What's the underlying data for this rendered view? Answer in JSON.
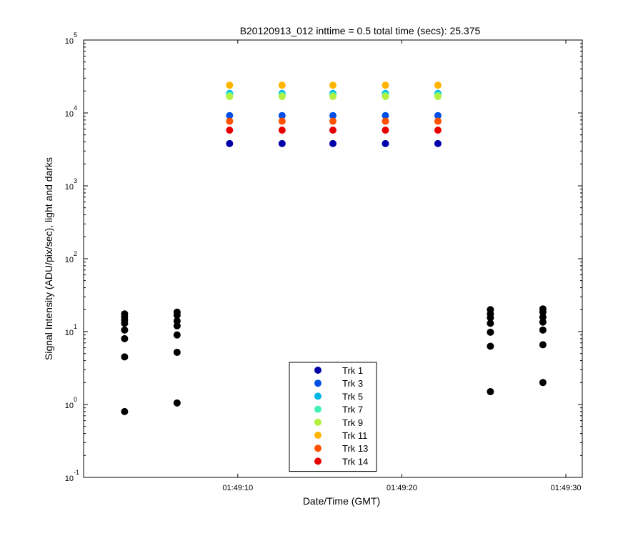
{
  "chart_data": {
    "type": "scatter",
    "title": "B20120913_012 inttime = 0.5 total time (secs): 25.375",
    "xlabel": "Date/Time (GMT)",
    "ylabel": "Signal Intensity (ADU/pix/sec), light and darks",
    "x_range": [
      "01:49:00.6",
      "01:49:31.0"
    ],
    "x_ticks": [
      "01:49:10",
      "01:49:20",
      "01:49:30"
    ],
    "y_scale": "log",
    "ylim": [
      0.1,
      100000
    ],
    "y_ticks": [
      {
        "base": "10",
        "exp": "-1",
        "value": 0.1
      },
      {
        "base": "10",
        "exp": "0",
        "value": 1
      },
      {
        "base": "10",
        "exp": "1",
        "value": 10
      },
      {
        "base": "10",
        "exp": "2",
        "value": 100
      },
      {
        "base": "10",
        "exp": "3",
        "value": 1000
      },
      {
        "base": "10",
        "exp": "4",
        "value": 10000
      },
      {
        "base": "10",
        "exp": "5",
        "value": 100000
      }
    ],
    "grid": false,
    "legend_position": "bottom-center",
    "series": [
      {
        "name": "Trk 1",
        "color": "#0000AA",
        "x": [
          "01:49:09.5",
          "01:49:12.7",
          "01:49:15.8",
          "01:49:19.0",
          "01:49:22.2"
        ],
        "y": [
          3800,
          3800,
          3800,
          3800,
          3800
        ]
      },
      {
        "name": "Trk 3",
        "color": "#0050E6",
        "x": [
          "01:49:09.5",
          "01:49:12.7",
          "01:49:15.8",
          "01:49:19.0",
          "01:49:22.2"
        ],
        "y": [
          9200,
          9200,
          9200,
          9200,
          9200
        ]
      },
      {
        "name": "Trk 5",
        "color": "#00B4E6",
        "x": [
          "01:49:09.5",
          "01:49:12.7",
          "01:49:15.8",
          "01:49:19.0",
          "01:49:22.2"
        ],
        "y": [
          18500,
          18500,
          18500,
          18500,
          18500
        ]
      },
      {
        "name": "Trk 7",
        "color": "#40F0B4",
        "x": [
          "01:49:09.5",
          "01:49:12.7",
          "01:49:15.8",
          "01:49:19.0",
          "01:49:22.2"
        ],
        "y": [
          17500,
          17500,
          17500,
          17500,
          17500
        ]
      },
      {
        "name": "Trk 9",
        "color": "#B4F040",
        "x": [
          "01:49:09.5",
          "01:49:12.7",
          "01:49:15.8",
          "01:49:19.0",
          "01:49:22.2"
        ],
        "y": [
          16800,
          16800,
          16800,
          16800,
          16800
        ]
      },
      {
        "name": "Trk 11",
        "color": "#FFB400",
        "x": [
          "01:49:09.5",
          "01:49:12.7",
          "01:49:15.8",
          "01:49:19.0",
          "01:49:22.2"
        ],
        "y": [
          24000,
          24000,
          24000,
          24000,
          24000
        ]
      },
      {
        "name": "Trk 13",
        "color": "#FF5000",
        "x": [
          "01:49:09.5",
          "01:49:12.7",
          "01:49:15.8",
          "01:49:19.0",
          "01:49:22.2"
        ],
        "y": [
          7700,
          7700,
          7700,
          7700,
          7700
        ]
      },
      {
        "name": "Trk 14",
        "color": "#E60000",
        "x": [
          "01:49:09.5",
          "01:49:12.7",
          "01:49:15.8",
          "01:49:19.0",
          "01:49:22.2"
        ],
        "y": [
          5800,
          5800,
          5800,
          5800,
          5800
        ]
      }
    ],
    "darks": {
      "color": "#000000",
      "points": [
        {
          "x": "01:49:03.1",
          "y": [
            17.5,
            16,
            14.5,
            13,
            10.5,
            8,
            4.5,
            0.8
          ]
        },
        {
          "x": "01:49:06.3",
          "y": [
            18.5,
            16.8,
            14,
            12,
            9,
            5.2,
            1.05
          ]
        },
        {
          "x": "01:49:25.4",
          "y": [
            20,
            17.5,
            15.5,
            13,
            9.8,
            6.3,
            1.5
          ]
        },
        {
          "x": "01:49:28.6",
          "y": [
            20.5,
            18.5,
            15.8,
            13.5,
            10.5,
            6.6,
            2
          ]
        }
      ]
    }
  }
}
